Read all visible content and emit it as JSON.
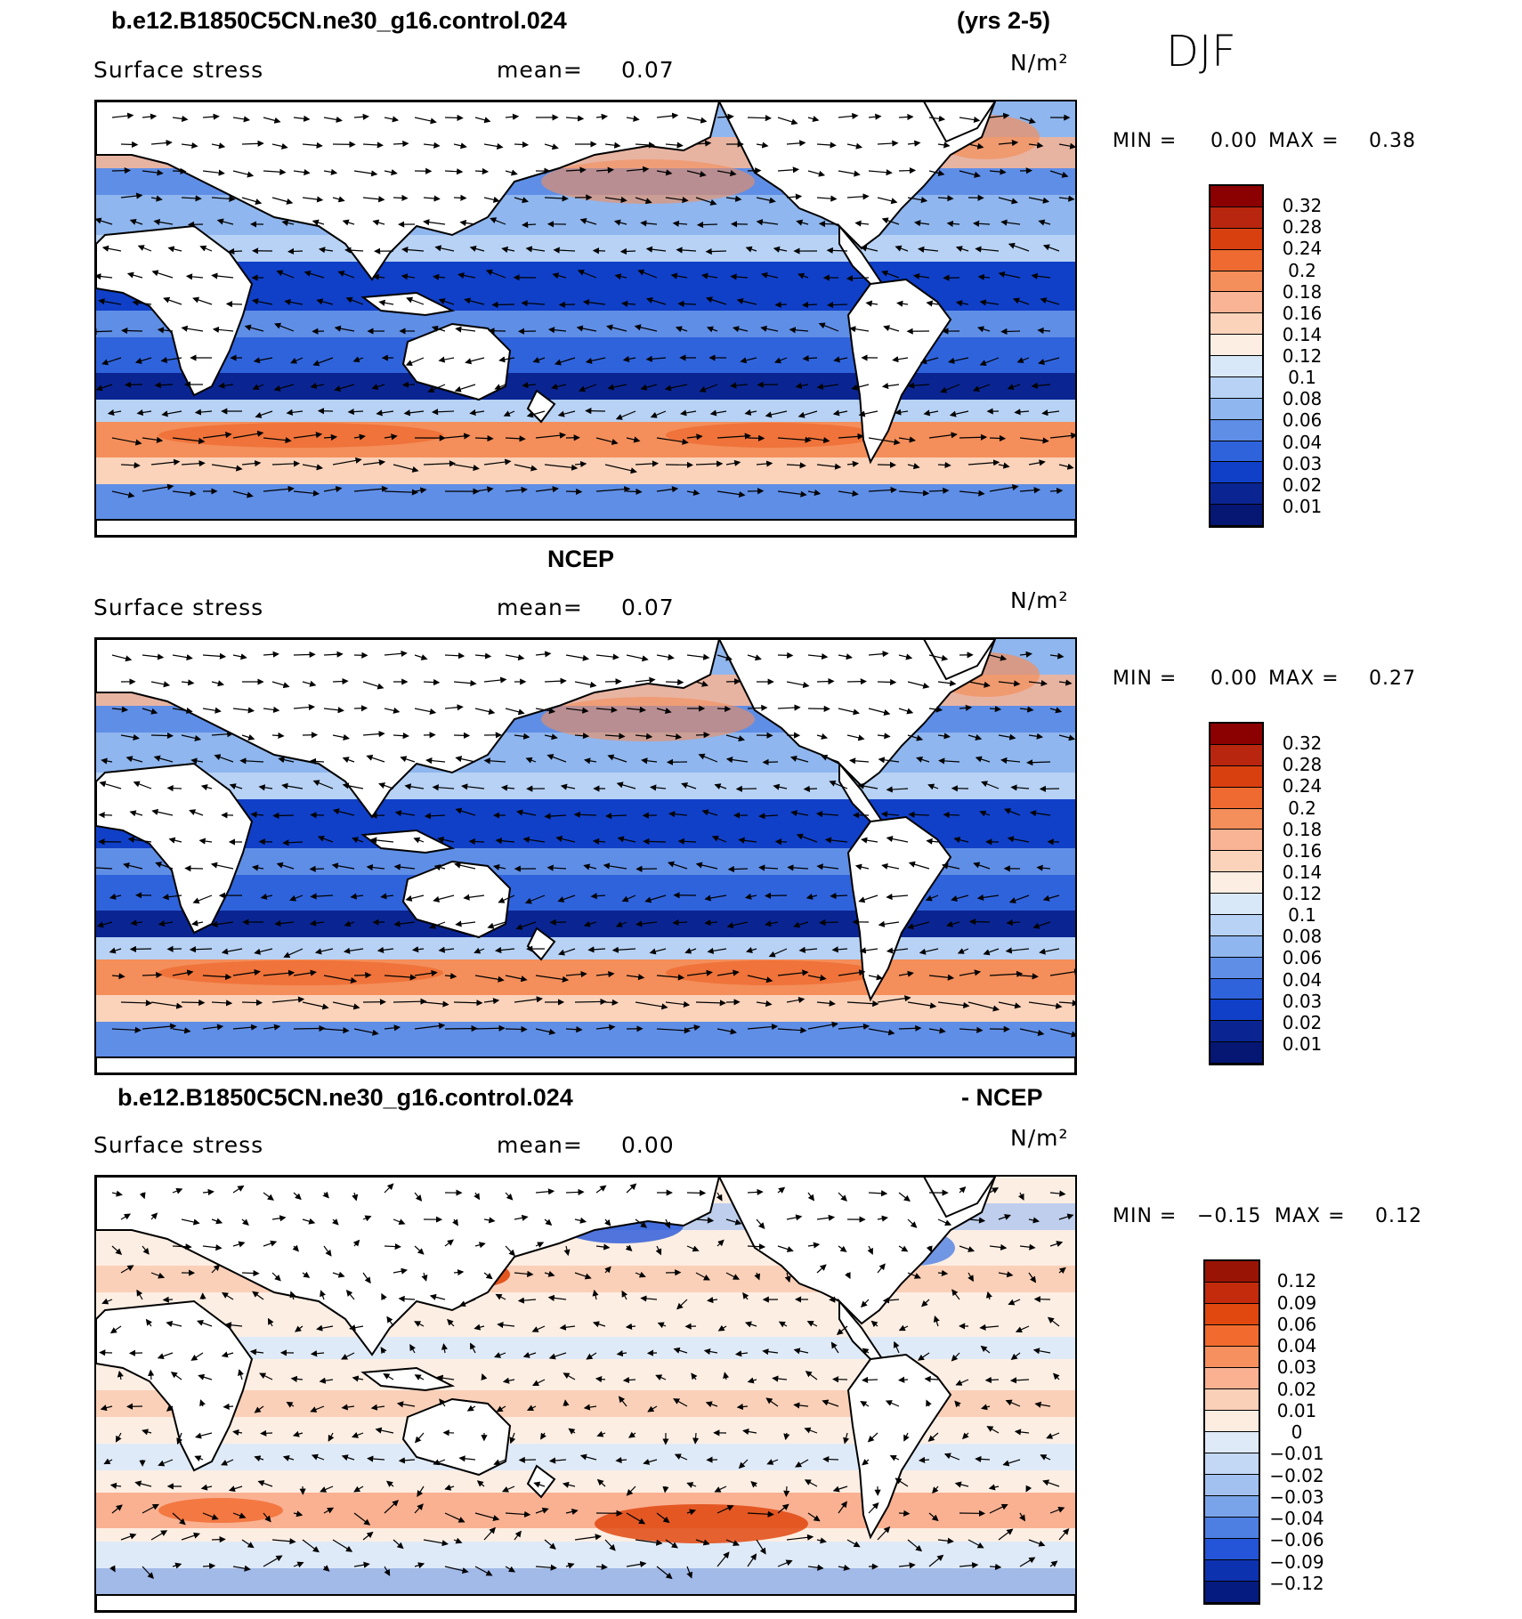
{
  "chart_data": [
    {
      "type": "heatmap",
      "title": "b.e12.B1850C5CN.ne30_g16.control.024",
      "title_right": "(yrs 2-5)",
      "season": "DJF",
      "variable": "Surface stress",
      "mean_label": "mean=",
      "mean": "0.07",
      "units": "N/m²",
      "min_label": "MIN =",
      "min": "0.00",
      "max_label": "MAX =",
      "max": "0.38",
      "colorbar_levels": [
        "0.32",
        "0.28",
        "0.24",
        "0.2",
        "0.18",
        "0.16",
        "0.14",
        "0.12",
        "0.1",
        "0.08",
        "0.06",
        "0.04",
        "0.03",
        "0.02",
        "0.01"
      ],
      "colorbar_colors": [
        "#8b0000",
        "#b8260f",
        "#d9400f",
        "#ee6a30",
        "#f48e5a",
        "#f8b494",
        "#fbd3bb",
        "#fdeee3",
        "#d8e8f8",
        "#b7d2f4",
        "#8fb6ee",
        "#5f8ee6",
        "#2f63dc",
        "#1040c8",
        "#0a2592",
        "#061673"
      ]
    },
    {
      "type": "heatmap",
      "title": "NCEP",
      "variable": "Surface stress",
      "mean_label": "mean=",
      "mean": "0.07",
      "units": "N/m²",
      "min_label": "MIN =",
      "min": "0.00",
      "max_label": "MAX =",
      "max": "0.27",
      "colorbar_levels": [
        "0.32",
        "0.28",
        "0.24",
        "0.2",
        "0.18",
        "0.16",
        "0.14",
        "0.12",
        "0.1",
        "0.08",
        "0.06",
        "0.04",
        "0.03",
        "0.02",
        "0.01"
      ],
      "colorbar_colors": [
        "#8b0000",
        "#b8260f",
        "#d9400f",
        "#ee6a30",
        "#f48e5a",
        "#f8b494",
        "#fbd3bb",
        "#fdeee3",
        "#d8e8f8",
        "#b7d2f4",
        "#8fb6ee",
        "#5f8ee6",
        "#2f63dc",
        "#1040c8",
        "#0a2592",
        "#061673"
      ]
    },
    {
      "type": "heatmap",
      "title": "b.e12.B1850C5CN.ne30_g16.control.024",
      "title_right": "- NCEP",
      "variable": "Surface stress",
      "mean_label": "mean=",
      "mean": "0.00",
      "units": "N/m²",
      "min_label": "MIN =",
      "min": "−0.15",
      "max_label": "MAX =",
      "max": "0.12",
      "colorbar_levels": [
        "0.12",
        "0.09",
        "0.06",
        "0.04",
        "0.03",
        "0.02",
        "0.01",
        "0",
        "−0.01",
        "−0.02",
        "−0.03",
        "−0.04",
        "−0.06",
        "−0.09",
        "−0.12"
      ],
      "colorbar_colors": [
        "#9a1405",
        "#c42a0c",
        "#e0480f",
        "#f26a2e",
        "#f6905e",
        "#f9b192",
        "#fbd0b8",
        "#fdece0",
        "#dfeaf8",
        "#c3d8f5",
        "#a2c1f0",
        "#7aa4ea",
        "#4d7fe3",
        "#2455d8",
        "#0d32b0",
        "#061b80"
      ]
    }
  ]
}
